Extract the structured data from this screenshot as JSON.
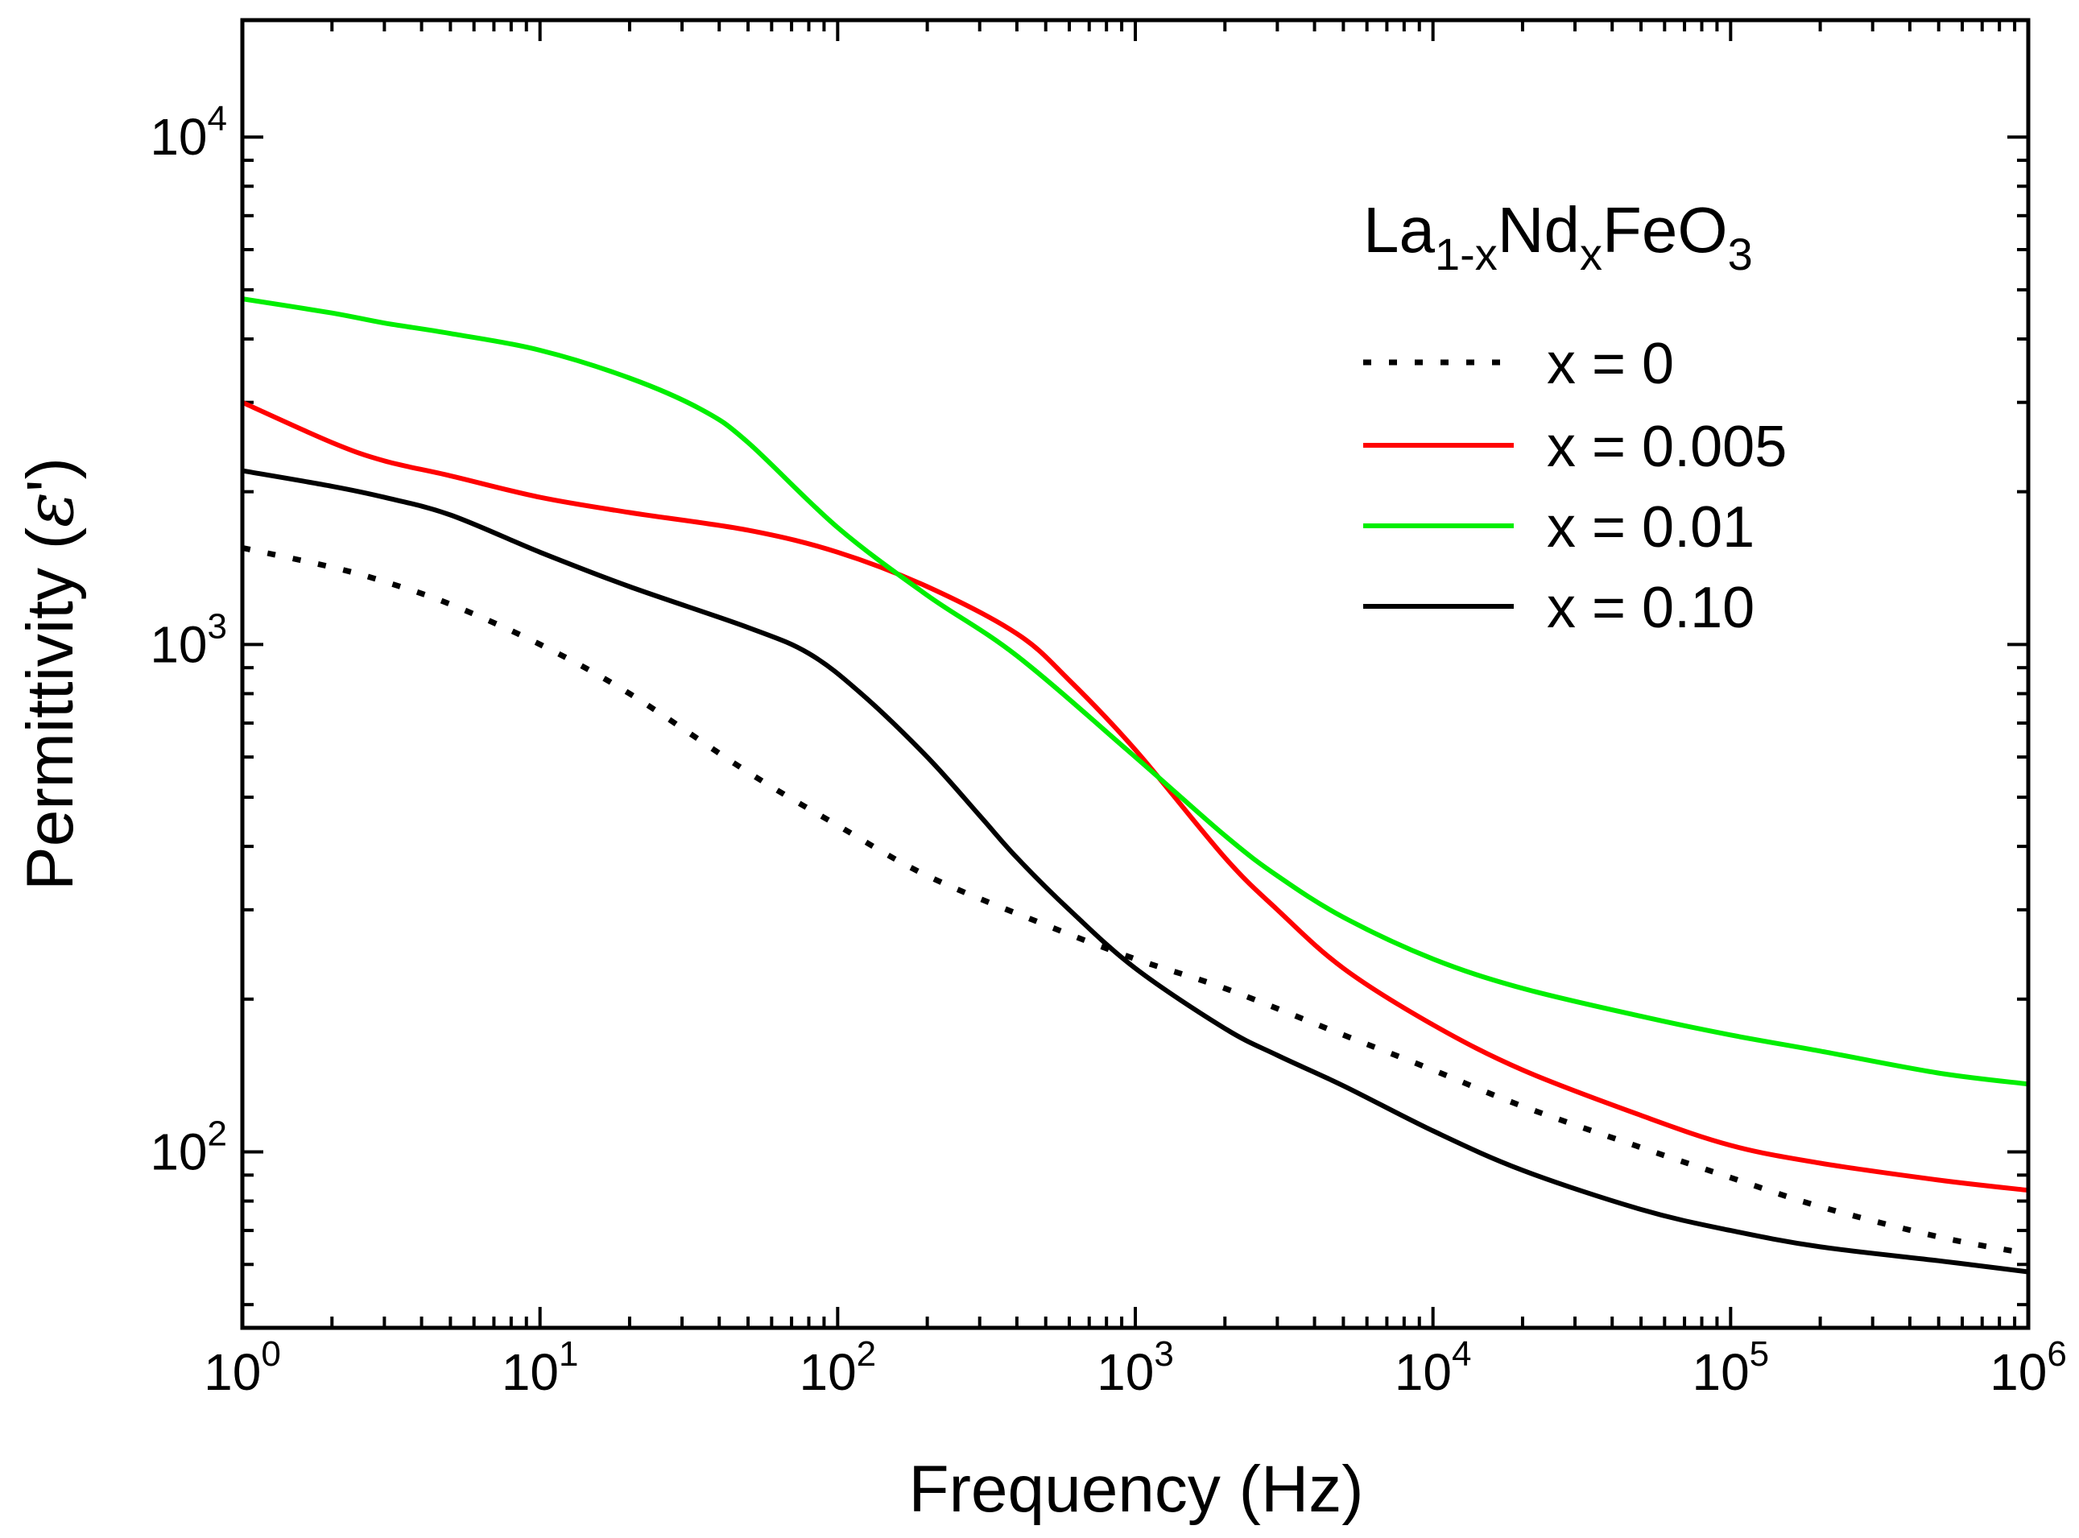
{
  "chart_data": {
    "type": "line",
    "title": "",
    "xlabel": "Frequency (Hz)",
    "ylabel": {
      "text": "Permittivity (",
      "symbol": "ε",
      "prime": "'",
      "close": ")"
    },
    "xscale": "log",
    "yscale": "log",
    "xlim": [
      1,
      1000000
    ],
    "ylim": [
      45,
      17000
    ],
    "grid": false,
    "x_ticks": [
      {
        "value": 1,
        "base": "10",
        "exp": "0"
      },
      {
        "value": 10,
        "base": "10",
        "exp": "1"
      },
      {
        "value": 100,
        "base": "10",
        "exp": "2"
      },
      {
        "value": 1000,
        "base": "10",
        "exp": "3"
      },
      {
        "value": 10000,
        "base": "10",
        "exp": "4"
      },
      {
        "value": 100000,
        "base": "10",
        "exp": "5"
      },
      {
        "value": 1000000,
        "base": "10",
        "exp": "6"
      }
    ],
    "y_ticks": [
      {
        "value": 100,
        "base": "10",
        "exp": "2"
      },
      {
        "value": 1000,
        "base": "10",
        "exp": "3"
      },
      {
        "value": 10000,
        "base": "10",
        "exp": "4"
      }
    ],
    "legend": {
      "position": "top-right",
      "title": {
        "main1": "La",
        "sub1": "1-x",
        "main2": "Nd",
        "sub2": "x",
        "main3": "FeO",
        "sub3": "3"
      }
    },
    "series": [
      {
        "name": "x = 0",
        "color": "#000000",
        "style": "dotted",
        "x": [
          1,
          2,
          3,
          5,
          10,
          20,
          50,
          100,
          200,
          500,
          1000,
          2000,
          5000,
          10000,
          20000,
          50000,
          100000,
          200000,
          500000,
          1000000
        ],
        "y": [
          1550,
          1420,
          1330,
          1200,
          1000,
          800,
          560,
          440,
          350,
          280,
          240,
          210,
          170,
          145,
          123,
          102,
          89,
          78,
          68,
          63
        ]
      },
      {
        "name": "x = 0.005",
        "color": "#ff0000",
        "style": "solid",
        "x": [
          1,
          2,
          3,
          5,
          10,
          20,
          50,
          100,
          200,
          400,
          600,
          1000,
          2000,
          3000,
          5000,
          10000,
          20000,
          50000,
          100000,
          200000,
          500000,
          1000000
        ],
        "y": [
          3000,
          2500,
          2300,
          2150,
          1950,
          1820,
          1680,
          1520,
          1300,
          1050,
          850,
          620,
          380,
          300,
          230,
          178,
          145,
          118,
          103,
          95,
          88,
          84
        ]
      },
      {
        "name": "x = 0.01",
        "color": "#00ee00",
        "style": "solid",
        "x": [
          1,
          2,
          3,
          5,
          10,
          20,
          35,
          50,
          100,
          200,
          400,
          1000,
          2000,
          3000,
          5000,
          10000,
          20000,
          50000,
          100000,
          200000,
          500000,
          1000000
        ],
        "y": [
          4800,
          4500,
          4300,
          4100,
          3800,
          3350,
          2900,
          2500,
          1700,
          1250,
          950,
          600,
          420,
          350,
          290,
          240,
          210,
          185,
          170,
          158,
          143,
          136
        ]
      },
      {
        "name": "x = 0.10",
        "color": "#000000",
        "style": "solid",
        "x": [
          1,
          2,
          3,
          5,
          10,
          20,
          50,
          80,
          120,
          200,
          300,
          400,
          600,
          1000,
          2000,
          3000,
          5000,
          10000,
          20000,
          50000,
          100000,
          200000,
          500000,
          1000000
        ],
        "y": [
          2200,
          2050,
          1950,
          1800,
          1520,
          1300,
          1080,
          960,
          800,
          600,
          460,
          380,
          300,
          230,
          175,
          155,
          135,
          110,
          92,
          77,
          70,
          65,
          61,
          58
        ]
      }
    ]
  }
}
